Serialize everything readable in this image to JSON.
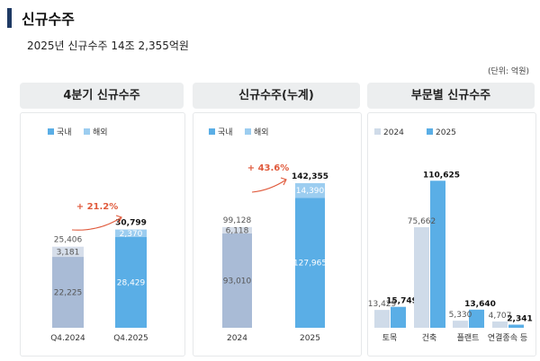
{
  "page": {
    "title": "신규수주",
    "subtitle": "2025년 신규수주 14조 2,355억원",
    "unit_note": "(단위: 억원)"
  },
  "colors": {
    "domestic": "#5aaee6",
    "overseas": "#9ccdf0",
    "domestic_prev": "#a9bbd6",
    "overseas_prev": "#d6deea",
    "y2024": "#cfdbe9",
    "y2025": "#5aaee6",
    "growth": "#e05a3c",
    "accent_bar": "#1f3a64"
  },
  "panels": [
    {
      "header": "4분기 신규수주",
      "legend": [
        "국내",
        "해외"
      ]
    },
    {
      "header": "신규수주(누계)",
      "legend": [
        "국내",
        "해외"
      ]
    },
    {
      "header": "부문별 신규수주",
      "legend": [
        "2024",
        "2025"
      ]
    }
  ],
  "chart_data": [
    {
      "type": "bar",
      "stacked": true,
      "categories": [
        "Q4.2024",
        "Q4.2025"
      ],
      "series": [
        {
          "name": "국내",
          "values": [
            22225,
            28429
          ],
          "labels": [
            "22,225",
            "28,429"
          ]
        },
        {
          "name": "해외",
          "values": [
            3181,
            2370
          ],
          "labels": [
            "3,181",
            "2,370"
          ]
        }
      ],
      "totals": [
        25406,
        30799
      ],
      "total_labels": [
        "25,406",
        "30,799"
      ],
      "growth_label": "+ 21.2%",
      "ylim": [
        0,
        38000
      ]
    },
    {
      "type": "bar",
      "stacked": true,
      "categories": [
        "2024",
        "2025"
      ],
      "series": [
        {
          "name": "국내",
          "values": [
            93010,
            127965
          ],
          "labels": [
            "93,010",
            "127,965"
          ]
        },
        {
          "name": "해외",
          "values": [
            6118,
            14390
          ],
          "labels": [
            "6,118",
            "14,390"
          ]
        }
      ],
      "totals": [
        99128,
        142355
      ],
      "total_labels": [
        "99,128",
        "142,355"
      ],
      "growth_label": "+ 43.6%",
      "ylim": [
        0,
        175000
      ]
    },
    {
      "type": "bar",
      "categories": [
        "토목",
        "건축",
        "플랜트",
        "연결종속 등"
      ],
      "series": [
        {
          "name": "2024",
          "values": [
            13429,
            75662,
            5330,
            4707
          ],
          "labels": [
            "13,429",
            "75,662",
            "5,330",
            "4,707"
          ]
        },
        {
          "name": "2025",
          "values": [
            15749,
            110625,
            13640,
            2341
          ],
          "labels": [
            "15,749",
            "110,625",
            "13,640",
            "2,341"
          ]
        }
      ],
      "ylim": [
        0,
        125000
      ]
    }
  ]
}
